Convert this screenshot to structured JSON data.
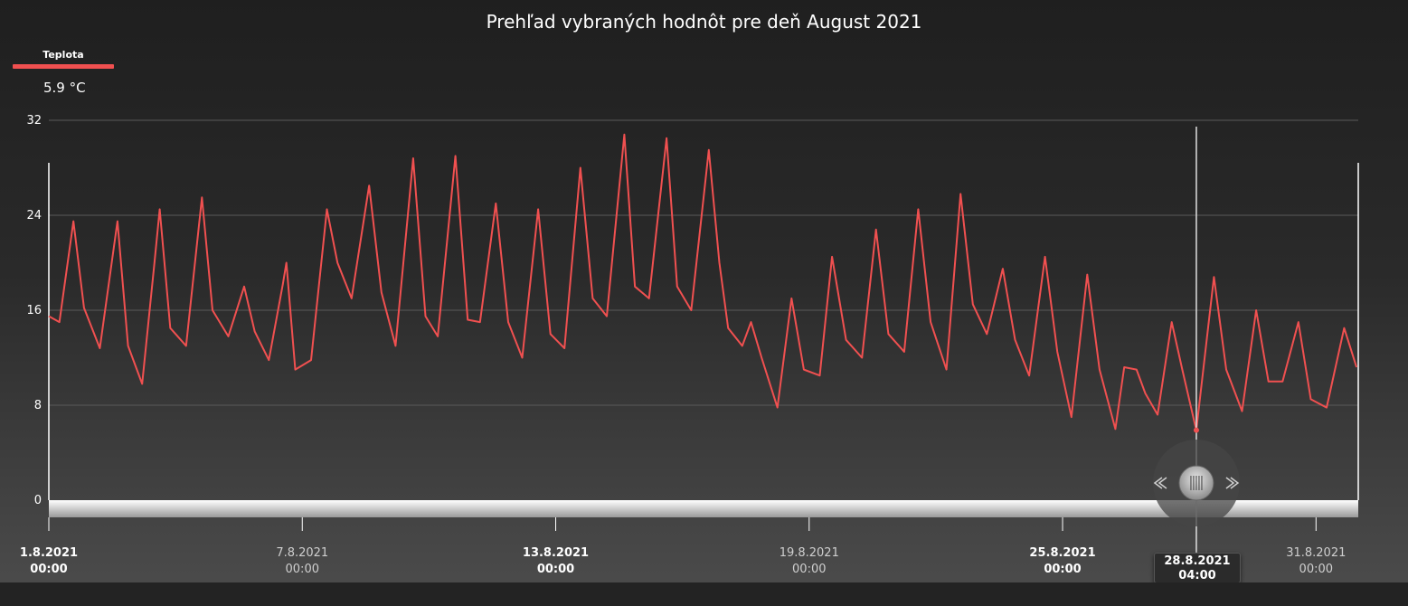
{
  "chart_data": {
    "type": "line",
    "title": "Prehľad vybraných hodnôt pre deň August 2021",
    "ylim": [
      0,
      32
    ],
    "yticks": [
      0,
      8,
      16,
      24,
      32
    ],
    "xlim": [
      "2021-08-01 00:00",
      "2021-09-01 00:00"
    ],
    "grid": true,
    "legend_position": "top-left",
    "series": [
      {
        "name": "Teplota",
        "color": "#f05050",
        "points": [
          [
            "2021-08-01 00:00",
            15.5
          ],
          [
            "2021-08-01 06:00",
            15.0
          ],
          [
            "2021-08-01 14:00",
            23.5
          ],
          [
            "2021-08-01 20:00",
            16.2
          ],
          [
            "2021-08-02 05:00",
            12.8
          ],
          [
            "2021-08-02 15:00",
            23.5
          ],
          [
            "2021-08-02 21:00",
            13.0
          ],
          [
            "2021-08-03 05:00",
            9.8
          ],
          [
            "2021-08-03 12:00",
            20.0
          ],
          [
            "2021-08-03 15:00",
            24.5
          ],
          [
            "2021-08-03 21:00",
            14.5
          ],
          [
            "2021-08-04 06:00",
            13.0
          ],
          [
            "2021-08-04 15:00",
            25.5
          ],
          [
            "2021-08-04 21:00",
            16.0
          ],
          [
            "2021-08-05 06:00",
            13.8
          ],
          [
            "2021-08-05 15:00",
            18.0
          ],
          [
            "2021-08-05 21:00",
            14.2
          ],
          [
            "2021-08-06 05:00",
            11.8
          ],
          [
            "2021-08-06 13:00",
            18.2
          ],
          [
            "2021-08-06 15:00",
            20.0
          ],
          [
            "2021-08-06 20:00",
            11.0
          ],
          [
            "2021-08-07 05:00",
            11.8
          ],
          [
            "2021-08-07 14:00",
            24.5
          ],
          [
            "2021-08-07 20:00",
            20.0
          ],
          [
            "2021-08-08 04:00",
            17.0
          ],
          [
            "2021-08-08 14:00",
            26.5
          ],
          [
            "2021-08-08 21:00",
            17.5
          ],
          [
            "2021-08-09 05:00",
            13.0
          ],
          [
            "2021-08-09 15:00",
            28.8
          ],
          [
            "2021-08-09 22:00",
            15.5
          ],
          [
            "2021-08-10 05:00",
            13.8
          ],
          [
            "2021-08-10 15:00",
            29.0
          ],
          [
            "2021-08-10 22:00",
            15.2
          ],
          [
            "2021-08-11 05:00",
            15.0
          ],
          [
            "2021-08-11 14:00",
            25.0
          ],
          [
            "2021-08-11 21:00",
            15.0
          ],
          [
            "2021-08-12 05:00",
            12.0
          ],
          [
            "2021-08-12 14:00",
            24.5
          ],
          [
            "2021-08-12 21:00",
            14.0
          ],
          [
            "2021-08-13 05:00",
            12.8
          ],
          [
            "2021-08-13 14:00",
            28.0
          ],
          [
            "2021-08-13 21:00",
            17.0
          ],
          [
            "2021-08-14 05:00",
            15.5
          ],
          [
            "2021-08-14 15:00",
            30.8
          ],
          [
            "2021-08-14 21:00",
            18.0
          ],
          [
            "2021-08-15 05:00",
            17.0
          ],
          [
            "2021-08-15 15:00",
            30.5
          ],
          [
            "2021-08-15 21:00",
            18.0
          ],
          [
            "2021-08-16 05:00",
            16.0
          ],
          [
            "2021-08-16 15:00",
            29.5
          ],
          [
            "2021-08-16 21:00",
            20.0
          ],
          [
            "2021-08-17 02:00",
            14.5
          ],
          [
            "2021-08-17 10:00",
            13.0
          ],
          [
            "2021-08-17 15:00",
            15.0
          ],
          [
            "2021-08-17 21:00",
            12.0
          ],
          [
            "2021-08-18 06:00",
            7.8
          ],
          [
            "2021-08-18 14:00",
            17.0
          ],
          [
            "2021-08-18 21:00",
            11.0
          ],
          [
            "2021-08-19 06:00",
            10.5
          ],
          [
            "2021-08-19 13:00",
            20.5
          ],
          [
            "2021-08-19 21:00",
            13.5
          ],
          [
            "2021-08-20 06:00",
            12.0
          ],
          [
            "2021-08-20 14:00",
            22.8
          ],
          [
            "2021-08-20 21:00",
            14.0
          ],
          [
            "2021-08-21 06:00",
            12.5
          ],
          [
            "2021-08-21 14:00",
            24.5
          ],
          [
            "2021-08-21 21:00",
            15.0
          ],
          [
            "2021-08-22 06:00",
            11.0
          ],
          [
            "2021-08-22 14:00",
            25.8
          ],
          [
            "2021-08-22 21:00",
            16.5
          ],
          [
            "2021-08-23 05:00",
            14.0
          ],
          [
            "2021-08-23 14:00",
            19.5
          ],
          [
            "2021-08-23 21:00",
            13.5
          ],
          [
            "2021-08-24 05:00",
            10.5
          ],
          [
            "2021-08-24 14:00",
            20.5
          ],
          [
            "2021-08-24 21:00",
            12.5
          ],
          [
            "2021-08-25 05:00",
            7.0
          ],
          [
            "2021-08-25 14:00",
            19.0
          ],
          [
            "2021-08-25 21:00",
            11.0
          ],
          [
            "2021-08-26 06:00",
            6.0
          ],
          [
            "2021-08-26 11:00",
            11.2
          ],
          [
            "2021-08-26 18:00",
            11.0
          ],
          [
            "2021-08-26 23:00",
            9.0
          ],
          [
            "2021-08-27 06:00",
            7.2
          ],
          [
            "2021-08-27 14:00",
            15.0
          ],
          [
            "2021-08-27 20:00",
            11.0
          ],
          [
            "2021-08-28 04:00",
            5.9
          ],
          [
            "2021-08-28 14:00",
            18.8
          ],
          [
            "2021-08-28 21:00",
            11.0
          ],
          [
            "2021-08-29 06:00",
            7.5
          ],
          [
            "2021-08-29 14:00",
            16.0
          ],
          [
            "2021-08-29 21:00",
            10.0
          ],
          [
            "2021-08-30 05:00",
            10.0
          ],
          [
            "2021-08-30 14:00",
            15.0
          ],
          [
            "2021-08-30 21:00",
            8.5
          ],
          [
            "2021-08-31 06:00",
            7.8
          ],
          [
            "2021-08-31 16:00",
            14.5
          ],
          [
            "2021-08-31 23:00",
            11.2
          ]
        ]
      }
    ],
    "x_tick_labels": [
      {
        "date": "1.8.2021",
        "time": "00:00",
        "at": "2021-08-01 00:00",
        "bold": true
      },
      {
        "date": "7.8.2021",
        "time": "00:00",
        "at": "2021-08-07 00:00",
        "bold": false
      },
      {
        "date": "13.8.2021",
        "time": "00:00",
        "at": "2021-08-13 00:00",
        "bold": true
      },
      {
        "date": "19.8.2021",
        "time": "00:00",
        "at": "2021-08-19 00:00",
        "bold": false
      },
      {
        "date": "25.8.2021",
        "time": "00:00",
        "at": "2021-08-25 00:00",
        "bold": true
      },
      {
        "date": "31.8.2021",
        "time": "00:00",
        "at": "2021-08-31 00:00",
        "bold": false
      }
    ],
    "cursor": {
      "at": "2021-08-28 04:00",
      "date": "28.8.2021",
      "time": "04:00",
      "value": 5.9
    }
  },
  "legend": {
    "name": "Teplota",
    "value_text": "5.9 °C"
  }
}
